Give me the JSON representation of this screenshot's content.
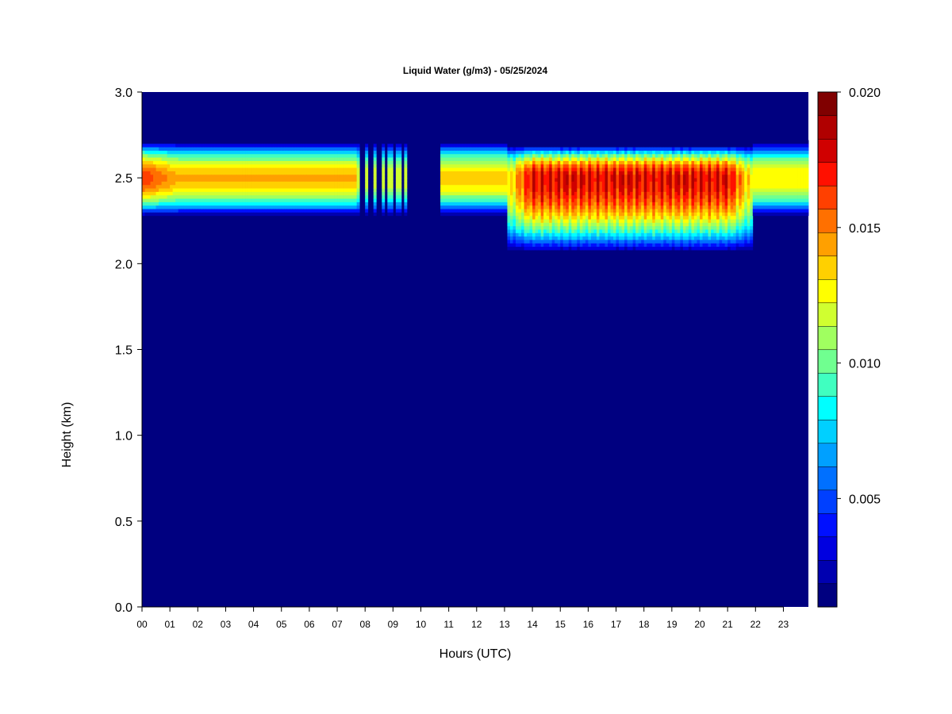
{
  "chart_data": {
    "type": "heatmap",
    "title": "Liquid Water (g/m3) - 05/25/2024",
    "xlabel": "Hours (UTC)",
    "ylabel": "Height (km)",
    "xlim": [
      0,
      23.9
    ],
    "ylim": [
      0.0,
      3.0
    ],
    "x_ticks": [
      "00",
      "01",
      "02",
      "03",
      "04",
      "05",
      "06",
      "07",
      "08",
      "09",
      "10",
      "11",
      "12",
      "13",
      "14",
      "15",
      "16",
      "17",
      "18",
      "19",
      "20",
      "21",
      "22",
      "23"
    ],
    "y_ticks": [
      "0.0",
      "0.5",
      "1.0",
      "1.5",
      "2.0",
      "2.5",
      "3.0"
    ],
    "colorbar": {
      "range": [
        0.001,
        0.02
      ],
      "ticks": [
        "0.005",
        "0.010",
        "0.015",
        "0.020"
      ],
      "tick_values": [
        0.005,
        0.01,
        0.015,
        0.02
      ],
      "colors": [
        "#000080",
        "#0000b0",
        "#0000e0",
        "#0010ff",
        "#0040ff",
        "#0070ff",
        "#00a0ff",
        "#00d0ff",
        "#00ffff",
        "#40ffc0",
        "#70ff90",
        "#a0ff60",
        "#d0ff30",
        "#ffff00",
        "#ffd000",
        "#ffa000",
        "#ff7000",
        "#ff4000",
        "#ff1000",
        "#d00000",
        "#b00000",
        "#800000"
      ]
    },
    "background_value": 0.0,
    "cloud_layer_center_km": 2.5,
    "cloud_segments": [
      {
        "start_hour": 0.0,
        "end_hour": 7.7,
        "peak_g_m3": 0.014,
        "peak_at_start_g_m3": 0.0165,
        "top_km": 2.72,
        "base_km": 2.27
      },
      {
        "start_hour": 7.7,
        "end_hour": 9.45,
        "peak_g_m3": 0.012,
        "striped": true,
        "top_km": 2.72,
        "base_km": 2.27
      },
      {
        "start_hour": 10.65,
        "end_hour": 13.1,
        "peak_g_m3": 0.0135,
        "top_km": 2.72,
        "base_km": 2.27
      },
      {
        "start_hour": 13.1,
        "end_hour": 21.9,
        "peak_g_m3": 0.019,
        "top_km": 2.7,
        "base_km": 2.05
      },
      {
        "start_hour": 21.9,
        "end_hour": 23.9,
        "peak_g_m3": 0.013,
        "top_km": 2.72,
        "base_km": 2.27
      }
    ]
  }
}
